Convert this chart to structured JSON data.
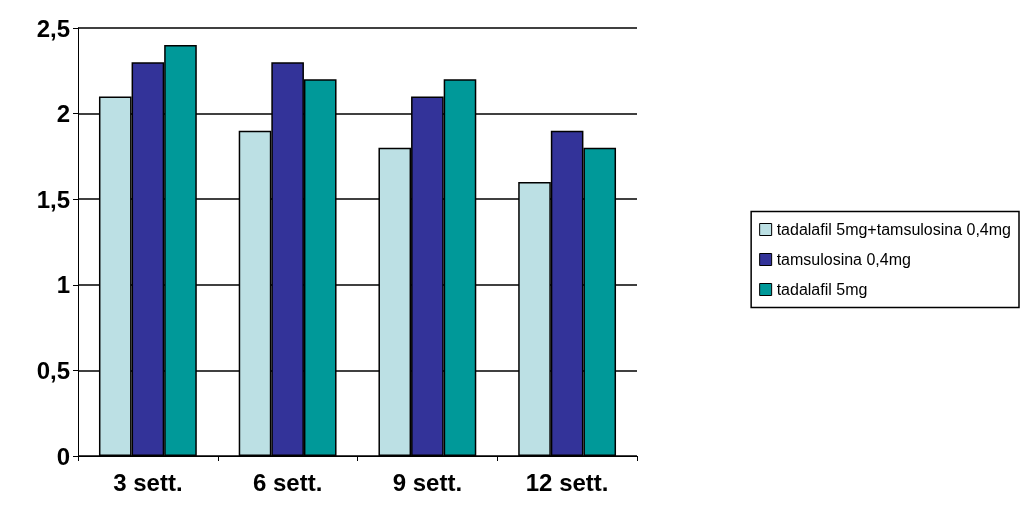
{
  "chart_data": {
    "type": "bar",
    "categories": [
      "3 sett.",
      "6 sett.",
      "9 sett.",
      "12 sett."
    ],
    "series": [
      {
        "name": "tadalafil 5mg+tamsulosina 0,4mg",
        "color": "#bce0e4",
        "values": [
          2.1,
          1.9,
          1.8,
          1.6
        ]
      },
      {
        "name": "tamsulosina 0,4mg",
        "color": "#333399",
        "values": [
          2.3,
          2.3,
          2.1,
          1.9
        ]
      },
      {
        "name": "tadalafil 5mg",
        "color": "#009999",
        "values": [
          2.4,
          2.2,
          2.2,
          1.8
        ]
      }
    ],
    "ylim": [
      0,
      2.5
    ],
    "yticks": [
      0,
      {
        "value": 0.5,
        "label": "0,5"
      },
      1,
      {
        "value": 1.5,
        "label": "1,5"
      },
      2,
      {
        "value": 2.5,
        "label": "2,5"
      }
    ],
    "grid": "y",
    "legend": "right"
  }
}
